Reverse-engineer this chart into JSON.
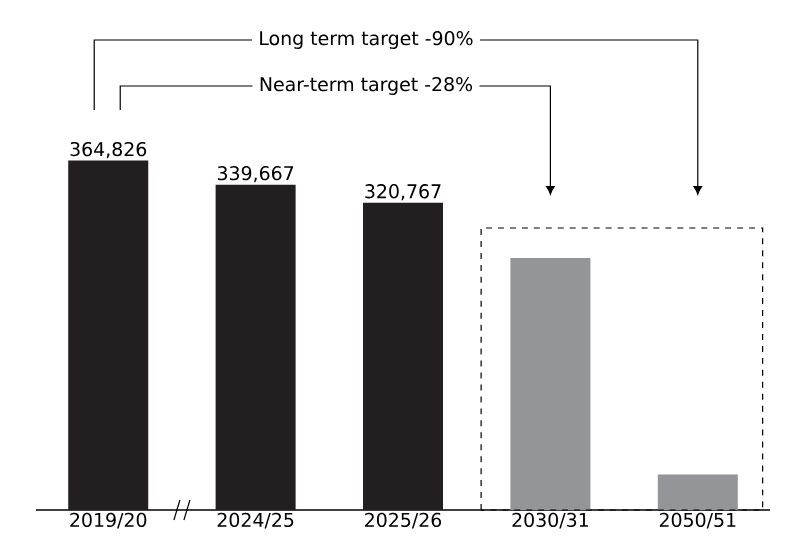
{
  "chart_data": {
    "type": "bar",
    "categories": [
      "2019/20",
      "2024/25",
      "2025/26",
      "2030/31",
      "2050/51"
    ],
    "values": [
      364826,
      339667,
      320767,
      263000,
      37000
    ],
    "colors": [
      "#231f20",
      "#231f20",
      "#231f20",
      "#939598",
      "#939598"
    ],
    "value_labels": [
      "364,826",
      "339,667",
      "320,767",
      null,
      null
    ],
    "annotations": [
      "Long term target -90%",
      "Near-term target -28%"
    ],
    "grid": false,
    "tick_labels": "x"
  }
}
